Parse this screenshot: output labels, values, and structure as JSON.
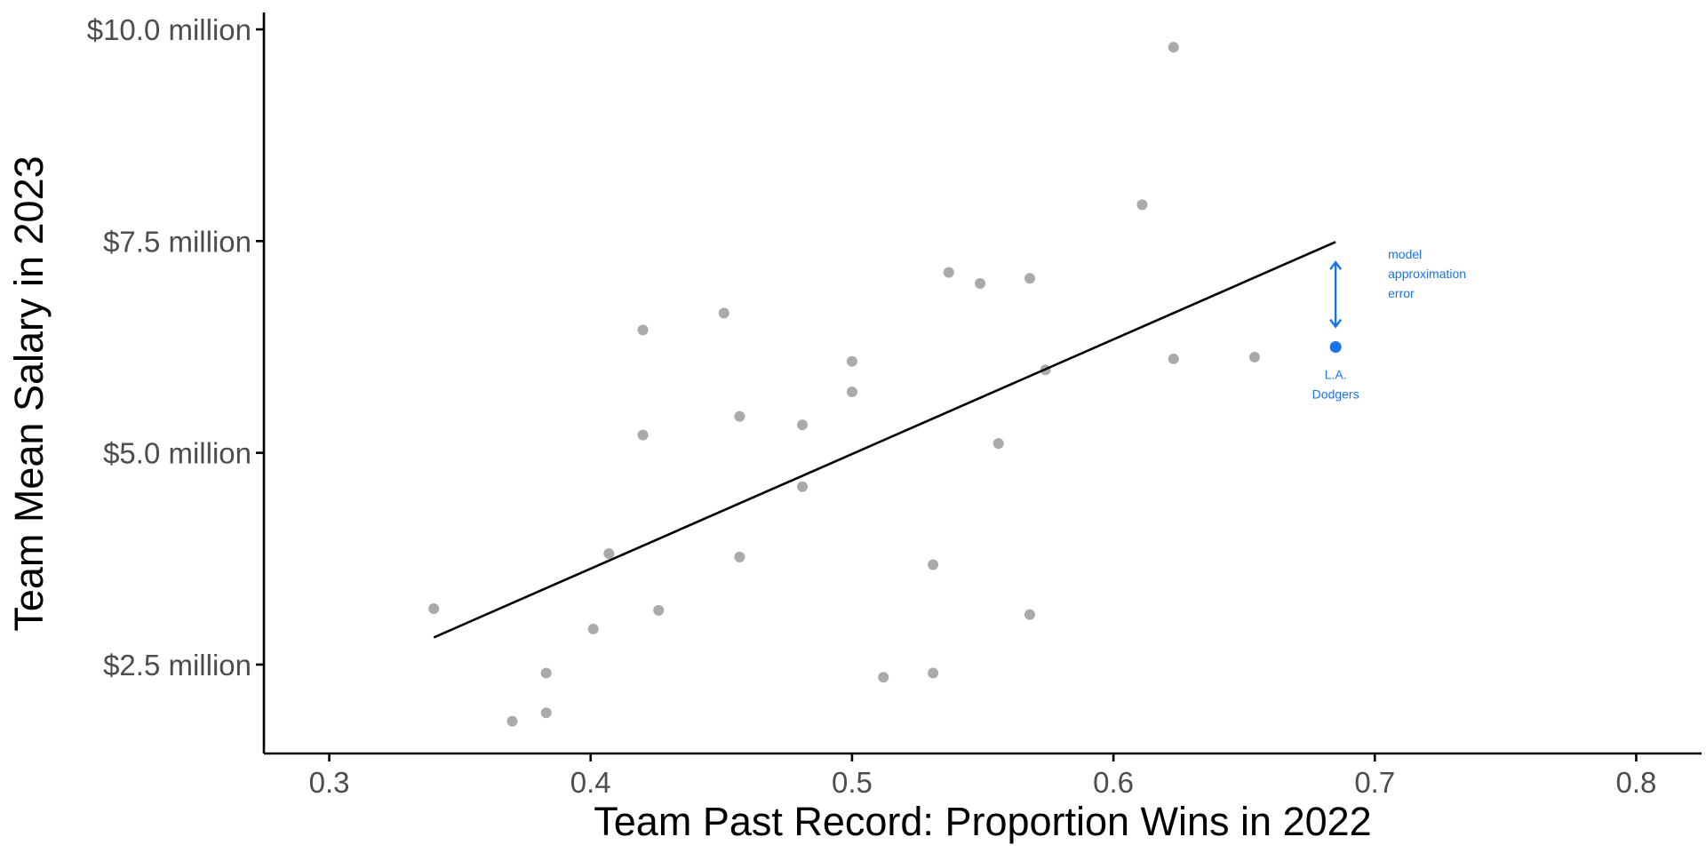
{
  "chart_data": {
    "type": "scatter",
    "title": "",
    "xlabel": "Team Past Record: Proportion Wins in 2022",
    "ylabel": "Team Mean Salary in 2023",
    "xlim": [
      0.275,
      0.825
    ],
    "ylim": [
      1.45,
      10.2
    ],
    "x_ticks": [
      0.3,
      0.4,
      0.5,
      0.6,
      0.7,
      0.8
    ],
    "x_tick_labels": [
      "0.3",
      "0.4",
      "0.5",
      "0.6",
      "0.7",
      "0.8"
    ],
    "y_ticks": [
      2.5,
      5.0,
      7.5,
      10.0
    ],
    "y_tick_labels": [
      "$2.5 million",
      "$5.0 million",
      "$7.5 million",
      "$10.0 million"
    ],
    "grid": false,
    "colors": {
      "points": "#aaaaaa",
      "line": "#000000",
      "highlight": "#1a73e8",
      "axis": "#000000"
    },
    "series": [
      {
        "values": [
          {
            "x": 0.34,
            "y": 3.16
          },
          {
            "x": 0.37,
            "y": 1.83
          },
          {
            "x": 0.383,
            "y": 2.4
          },
          {
            "x": 0.383,
            "y": 1.93
          },
          {
            "x": 0.401,
            "y": 2.92
          },
          {
            "x": 0.407,
            "y": 3.81
          },
          {
            "x": 0.42,
            "y": 6.45
          },
          {
            "x": 0.42,
            "y": 5.21
          },
          {
            "x": 0.426,
            "y": 3.14
          },
          {
            "x": 0.451,
            "y": 6.65
          },
          {
            "x": 0.457,
            "y": 5.43
          },
          {
            "x": 0.457,
            "y": 3.77
          },
          {
            "x": 0.481,
            "y": 5.33
          },
          {
            "x": 0.481,
            "y": 4.6
          },
          {
            "x": 0.5,
            "y": 6.08
          },
          {
            "x": 0.5,
            "y": 5.72
          },
          {
            "x": 0.512,
            "y": 2.35
          },
          {
            "x": 0.531,
            "y": 3.68
          },
          {
            "x": 0.531,
            "y": 2.4
          },
          {
            "x": 0.537,
            "y": 7.13
          },
          {
            "x": 0.549,
            "y": 7.0
          },
          {
            "x": 0.556,
            "y": 5.11
          },
          {
            "x": 0.568,
            "y": 7.06
          },
          {
            "x": 0.568,
            "y": 3.09
          },
          {
            "x": 0.574,
            "y": 5.98
          },
          {
            "x": 0.611,
            "y": 7.93
          },
          {
            "x": 0.623,
            "y": 9.79
          },
          {
            "x": 0.623,
            "y": 6.11
          },
          {
            "x": 0.654,
            "y": 6.13
          }
        ]
      }
    ],
    "highlight_point": {
      "x": 0.685,
      "y": 6.25,
      "label_lines": [
        "L.A.",
        "Dodgers"
      ]
    },
    "fit_line": {
      "x": [
        0.34,
        0.685
      ],
      "y": [
        2.82,
        7.49
      ]
    },
    "error_arrow": {
      "x": 0.685,
      "y_top": 7.25,
      "y_bottom": 6.49
    },
    "annotation": {
      "lines": [
        "model",
        "approximation",
        "error"
      ]
    }
  }
}
